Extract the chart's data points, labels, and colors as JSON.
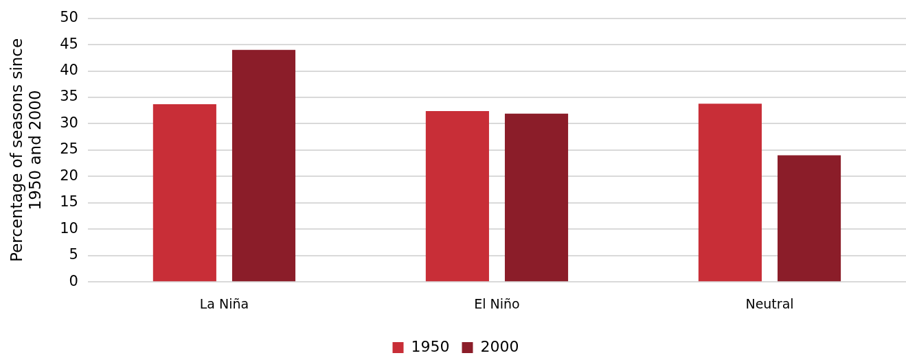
{
  "chart_data": {
    "type": "bar",
    "ylabel": "Percentage of seasons since\n1950 and 2000",
    "categories": [
      "La Niña",
      "El Niño",
      "Neutral"
    ],
    "series": [
      {
        "name": "1950",
        "color": "#c82e37",
        "values": [
          33.7,
          32.4,
          33.8
        ]
      },
      {
        "name": "2000",
        "color": "#8b1d29",
        "values": [
          44,
          31.9,
          24
        ]
      }
    ],
    "ylim": [
      0,
      50
    ],
    "yticks": [
      0,
      5,
      10,
      15,
      20,
      25,
      30,
      35,
      40,
      45,
      50
    ],
    "grid": "y",
    "legend": "bottom"
  }
}
